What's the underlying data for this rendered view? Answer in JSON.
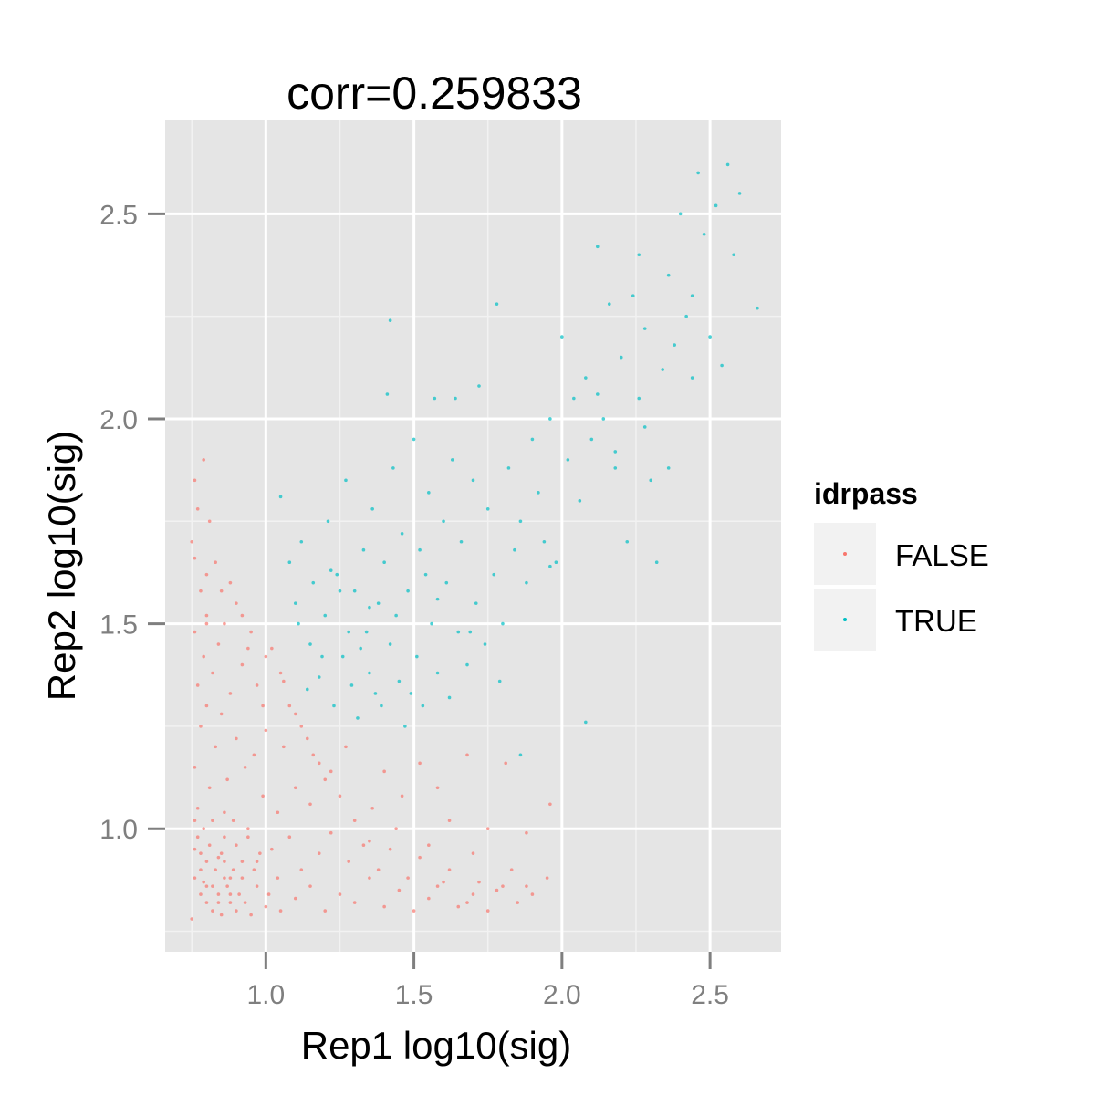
{
  "chart_data": {
    "type": "scatter",
    "title": "corr=0.259833",
    "xlabel": "Rep1 log10(sig)",
    "ylabel": "Rep2 log10(sig)",
    "xlim": [
      0.66,
      2.74
    ],
    "ylim": [
      0.7,
      2.73
    ],
    "x_ticks": [
      "1.0",
      "1.5",
      "2.0",
      "2.5"
    ],
    "y_ticks": [
      "1.0",
      "1.5",
      "2.0",
      "2.5"
    ],
    "grid": true,
    "legend": {
      "title": "idrpass",
      "position": "right",
      "entries": [
        {
          "label": "FALSE",
          "color": "#F8766D"
        },
        {
          "label": "TRUE",
          "color": "#00BFC4"
        }
      ]
    },
    "series": [
      {
        "name": "FALSE",
        "color": "#F8766D",
        "points": [
          [
            0.75,
            0.78
          ],
          [
            0.8,
            0.82
          ],
          [
            0.85,
            0.79
          ],
          [
            0.78,
            0.9
          ],
          [
            0.82,
            0.86
          ],
          [
            0.9,
            0.8
          ],
          [
            0.76,
            0.95
          ],
          [
            0.88,
            0.84
          ],
          [
            0.95,
            0.79
          ],
          [
            0.79,
            1.0
          ],
          [
            0.84,
            0.93
          ],
          [
            0.92,
            0.88
          ],
          [
            0.77,
            1.05
          ],
          [
            1.0,
            0.81
          ],
          [
            0.86,
            0.98
          ],
          [
            0.81,
            1.1
          ],
          [
            0.97,
            0.92
          ],
          [
            1.05,
            0.8
          ],
          [
            0.89,
            1.02
          ],
          [
            0.76,
            1.15
          ],
          [
            1.1,
            0.83
          ],
          [
            0.94,
            1.0
          ],
          [
            0.83,
            1.2
          ],
          [
            1.02,
            0.95
          ],
          [
            0.78,
            1.25
          ],
          [
            1.15,
            0.86
          ],
          [
            0.87,
            1.12
          ],
          [
            1.08,
            0.98
          ],
          [
            0.8,
            1.3
          ],
          [
            1.2,
            0.8
          ],
          [
            0.93,
            1.15
          ],
          [
            1.12,
            0.9
          ],
          [
            0.77,
            1.35
          ],
          [
            1.25,
            0.84
          ],
          [
            0.99,
            1.08
          ],
          [
            0.85,
            1.28
          ],
          [
            1.18,
            0.94
          ],
          [
            0.79,
            1.42
          ],
          [
            1.3,
            0.82
          ],
          [
            1.04,
            1.04
          ],
          [
            0.9,
            1.22
          ],
          [
            1.35,
            0.88
          ],
          [
            0.82,
            1.38
          ],
          [
            1.22,
            0.99
          ],
          [
            0.96,
            1.18
          ],
          [
            1.4,
            0.81
          ],
          [
            0.76,
            1.48
          ],
          [
            1.1,
            1.1
          ],
          [
            1.45,
            0.85
          ],
          [
            0.88,
            1.33
          ],
          [
            1.28,
            0.92
          ],
          [
            0.8,
            1.52
          ],
          [
            1.5,
            0.8
          ],
          [
            1.0,
            1.24
          ],
          [
            1.33,
            0.96
          ],
          [
            0.92,
            1.4
          ],
          [
            1.55,
            0.83
          ],
          [
            1.15,
            1.06
          ],
          [
            0.84,
            1.45
          ],
          [
            1.6,
            0.87
          ],
          [
            1.06,
            1.2
          ],
          [
            1.38,
            0.9
          ],
          [
            0.78,
            1.58
          ],
          [
            1.65,
            0.81
          ],
          [
            0.97,
            1.35
          ],
          [
            1.2,
            1.12
          ],
          [
            1.7,
            0.84
          ],
          [
            0.86,
            1.5
          ],
          [
            1.42,
            0.95
          ],
          [
            1.75,
            0.8
          ],
          [
            1.12,
            1.25
          ],
          [
            0.8,
            1.62
          ],
          [
            1.8,
            0.86
          ],
          [
            1.0,
            1.42
          ],
          [
            1.48,
            0.88
          ],
          [
            0.75,
            1.7
          ],
          [
            1.85,
            0.82
          ],
          [
            1.25,
            1.08
          ],
          [
            0.9,
            1.55
          ],
          [
            1.9,
            0.84
          ],
          [
            1.08,
            1.3
          ],
          [
            1.52,
            0.93
          ],
          [
            0.77,
            1.78
          ],
          [
            1.95,
            0.88
          ],
          [
            1.3,
            1.02
          ],
          [
            0.83,
            1.65
          ],
          [
            1.58,
            0.86
          ],
          [
            1.16,
            1.18
          ],
          [
            0.76,
            1.85
          ],
          [
            1.62,
            0.9
          ],
          [
            0.95,
            1.48
          ],
          [
            1.35,
            0.97
          ],
          [
            1.05,
            1.38
          ],
          [
            1.68,
            0.82
          ],
          [
            0.79,
            1.9
          ],
          [
            1.44,
            1.0
          ],
          [
            1.22,
            1.14
          ],
          [
            0.88,
            1.6
          ],
          [
            1.72,
            0.87
          ],
          [
            1.1,
            1.28
          ],
          [
            0.81,
            1.75
          ],
          [
            1.55,
            0.96
          ],
          [
            1.27,
            1.2
          ],
          [
            0.92,
            1.52
          ],
          [
            1.78,
            0.85
          ],
          [
            1.02,
            1.44
          ],
          [
            1.62,
            1.02
          ],
          [
            0.76,
            1.66
          ],
          [
            1.36,
            1.05
          ],
          [
            0.99,
            1.3
          ],
          [
            1.83,
            0.9
          ],
          [
            1.18,
            1.16
          ],
          [
            0.85,
            1.58
          ],
          [
            1.7,
            0.94
          ],
          [
            1.06,
            1.36
          ],
          [
            1.46,
            1.08
          ],
          [
            0.8,
            1.5
          ],
          [
            1.88,
            0.86
          ],
          [
            1.14,
            1.22
          ],
          [
            0.94,
            1.44
          ],
          [
            1.96,
            1.06
          ],
          [
            1.75,
            1.0
          ],
          [
            1.58,
            1.1
          ],
          [
            1.88,
            0.99
          ],
          [
            1.81,
            1.16
          ],
          [
            1.68,
            1.18
          ],
          [
            1.4,
            1.14
          ],
          [
            1.52,
            1.16
          ],
          [
            0.78,
            0.84
          ],
          [
            0.82,
            0.8
          ],
          [
            0.86,
            0.88
          ],
          [
            0.8,
            0.92
          ],
          [
            0.84,
            0.84
          ],
          [
            0.88,
            0.82
          ],
          [
            0.79,
            0.87
          ],
          [
            0.83,
            0.9
          ],
          [
            0.87,
            0.86
          ],
          [
            0.91,
            0.84
          ],
          [
            0.81,
            0.96
          ],
          [
            0.85,
            0.94
          ],
          [
            0.89,
            0.9
          ],
          [
            0.93,
            0.82
          ],
          [
            0.77,
            0.98
          ],
          [
            0.97,
            0.86
          ],
          [
            0.82,
            1.02
          ],
          [
            0.9,
            0.96
          ],
          [
            0.96,
            0.9
          ],
          [
            1.01,
            0.84
          ],
          [
            0.86,
            1.04
          ],
          [
            0.94,
            0.98
          ],
          [
            1.04,
            0.88
          ],
          [
            0.98,
            0.94
          ],
          [
            0.76,
            0.88
          ],
          [
            0.8,
            0.86
          ],
          [
            0.84,
            0.82
          ],
          [
            0.88,
            0.88
          ],
          [
            0.78,
            0.94
          ],
          [
            0.92,
            0.92
          ],
          [
            0.86,
            0.92
          ],
          [
            0.76,
            1.02
          ]
        ]
      },
      {
        "name": "TRUE",
        "color": "#00BFC4",
        "points": [
          [
            1.05,
            1.81
          ],
          [
            1.08,
            1.65
          ],
          [
            1.1,
            1.55
          ],
          [
            1.12,
            1.7
          ],
          [
            1.15,
            1.45
          ],
          [
            1.16,
            1.6
          ],
          [
            1.18,
            1.37
          ],
          [
            1.2,
            1.52
          ],
          [
            1.21,
            1.75
          ],
          [
            1.23,
            1.3
          ],
          [
            1.24,
            1.62
          ],
          [
            1.26,
            1.42
          ],
          [
            1.27,
            1.85
          ],
          [
            1.29,
            1.35
          ],
          [
            1.3,
            1.58
          ],
          [
            1.31,
            1.27
          ],
          [
            1.33,
            1.68
          ],
          [
            1.34,
            1.48
          ],
          [
            1.35,
            1.38
          ],
          [
            1.36,
            1.78
          ],
          [
            1.38,
            1.55
          ],
          [
            1.39,
            1.3
          ],
          [
            1.4,
            1.65
          ],
          [
            1.41,
            2.06
          ],
          [
            1.42,
            1.45
          ],
          [
            1.43,
            1.88
          ],
          [
            1.45,
            1.36
          ],
          [
            1.46,
            1.72
          ],
          [
            1.47,
            1.25
          ],
          [
            1.48,
            1.58
          ],
          [
            1.5,
            1.95
          ],
          [
            1.51,
            1.42
          ],
          [
            1.52,
            1.68
          ],
          [
            1.53,
            1.3
          ],
          [
            1.55,
            1.82
          ],
          [
            1.56,
            1.5
          ],
          [
            1.57,
            2.05
          ],
          [
            1.58,
            1.38
          ],
          [
            1.6,
            1.75
          ],
          [
            1.61,
            1.6
          ],
          [
            1.62,
            1.32
          ],
          [
            1.63,
            1.9
          ],
          [
            1.65,
            1.48
          ],
          [
            1.66,
            1.7
          ],
          [
            1.68,
            1.4
          ],
          [
            1.7,
            1.85
          ],
          [
            1.71,
            1.55
          ],
          [
            1.72,
            2.08
          ],
          [
            1.74,
            1.45
          ],
          [
            1.75,
            1.78
          ],
          [
            1.77,
            1.62
          ],
          [
            1.78,
            2.28
          ],
          [
            1.8,
            1.5
          ],
          [
            1.82,
            1.88
          ],
          [
            1.84,
            1.68
          ],
          [
            1.86,
            1.75
          ],
          [
            1.88,
            1.6
          ],
          [
            1.9,
            1.95
          ],
          [
            1.92,
            1.82
          ],
          [
            1.94,
            1.7
          ],
          [
            1.96,
            2.0
          ],
          [
            1.98,
            1.65
          ],
          [
            2.0,
            2.2
          ],
          [
            2.02,
            1.9
          ],
          [
            2.04,
            2.05
          ],
          [
            2.06,
            1.8
          ],
          [
            2.08,
            2.1
          ],
          [
            2.1,
            1.95
          ],
          [
            2.12,
            2.42
          ],
          [
            2.14,
            2.0
          ],
          [
            2.16,
            2.28
          ],
          [
            2.18,
            1.92
          ],
          [
            2.2,
            2.15
          ],
          [
            2.22,
            1.7
          ],
          [
            2.24,
            2.3
          ],
          [
            2.26,
            2.05
          ],
          [
            2.28,
            2.22
          ],
          [
            2.3,
            1.85
          ],
          [
            2.32,
            1.65
          ],
          [
            2.34,
            2.12
          ],
          [
            2.36,
            2.35
          ],
          [
            2.38,
            2.18
          ],
          [
            2.4,
            2.5
          ],
          [
            2.42,
            2.25
          ],
          [
            2.44,
            2.1
          ],
          [
            2.46,
            2.6
          ],
          [
            2.48,
            2.45
          ],
          [
            2.5,
            2.2
          ],
          [
            2.52,
            2.52
          ],
          [
            2.54,
            2.13
          ],
          [
            2.56,
            2.62
          ],
          [
            2.58,
            2.4
          ],
          [
            2.6,
            2.55
          ],
          [
            2.66,
            2.27
          ],
          [
            1.42,
            2.24
          ],
          [
            1.64,
            2.05
          ],
          [
            1.11,
            1.5
          ],
          [
            1.19,
            1.42
          ],
          [
            1.25,
            1.58
          ],
          [
            1.32,
            1.44
          ],
          [
            1.37,
            1.33
          ],
          [
            1.44,
            1.52
          ],
          [
            1.49,
            1.33
          ],
          [
            1.54,
            1.62
          ],
          [
            1.14,
            1.34
          ],
          [
            1.22,
            1.63
          ],
          [
            1.28,
            1.48
          ],
          [
            1.35,
            1.54
          ],
          [
            1.58,
            1.56
          ],
          [
            1.69,
            1.48
          ],
          [
            1.79,
            1.36
          ],
          [
            1.86,
            1.18
          ],
          [
            2.08,
            1.26
          ],
          [
            1.96,
            1.64
          ],
          [
            2.18,
            1.88
          ],
          [
            2.28,
            1.98
          ],
          [
            2.36,
            1.88
          ],
          [
            2.44,
            2.3
          ],
          [
            2.26,
            2.4
          ],
          [
            2.12,
            2.06
          ]
        ]
      }
    ]
  }
}
